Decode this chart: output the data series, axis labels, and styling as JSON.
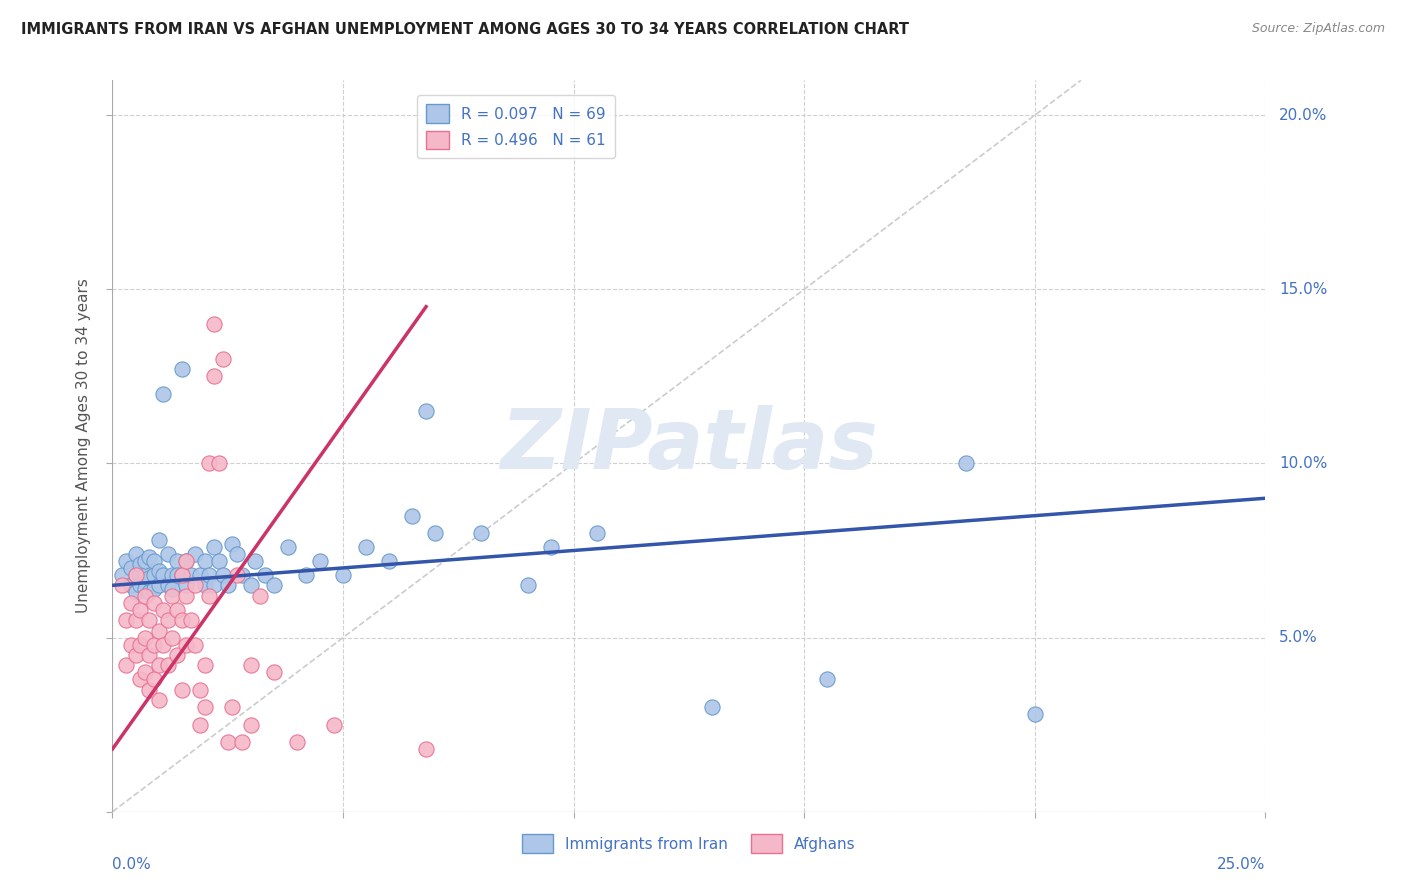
{
  "title": "IMMIGRANTS FROM IRAN VS AFGHAN UNEMPLOYMENT AMONG AGES 30 TO 34 YEARS CORRELATION CHART",
  "source": "Source: ZipAtlas.com",
  "ylabel": "Unemployment Among Ages 30 to 34 years",
  "legend_iran": {
    "R": "0.097",
    "N": "69",
    "label": "Immigrants from Iran"
  },
  "legend_afghan": {
    "R": "0.496",
    "N": "61",
    "label": "Afghans"
  },
  "iran_color": "#aec6e8",
  "afghan_color": "#f5b8c8",
  "iran_edge_color": "#6699cc",
  "afghan_edge_color": "#e87090",
  "iran_line_color": "#3355aa",
  "afghan_line_color": "#cc3366",
  "diagonal_color": "#cccccc",
  "right_tick_color": "#4472c4",
  "watermark_text": "ZIPatlas",
  "watermark_color": "#e0e8f4",
  "xlim": [
    0.0,
    0.25
  ],
  "ylim": [
    0.0,
    0.21
  ],
  "x_ticks": [
    0.0,
    0.05,
    0.1,
    0.15,
    0.2,
    0.25
  ],
  "y_ticks": [
    0.0,
    0.05,
    0.1,
    0.15,
    0.2
  ],
  "right_labels": [
    [
      "20.0%",
      0.2
    ],
    [
      "15.0%",
      0.15
    ],
    [
      "10.0%",
      0.1
    ],
    [
      "5.0%",
      0.05
    ]
  ],
  "bottom_labels": [
    [
      "0.0%",
      0.0
    ],
    [
      "25.0%",
      0.25
    ]
  ],
  "iran_trend": [
    0.0,
    0.065,
    0.25,
    0.09
  ],
  "afghan_trend": [
    0.0,
    0.018,
    0.068,
    0.145
  ],
  "diagonal": [
    0.0,
    0.0,
    0.21,
    0.21
  ],
  "iran_scatter": [
    [
      0.002,
      0.068
    ],
    [
      0.003,
      0.072
    ],
    [
      0.004,
      0.065
    ],
    [
      0.004,
      0.07
    ],
    [
      0.005,
      0.068
    ],
    [
      0.005,
      0.063
    ],
    [
      0.005,
      0.074
    ],
    [
      0.006,
      0.068
    ],
    [
      0.006,
      0.065
    ],
    [
      0.006,
      0.071
    ],
    [
      0.007,
      0.068
    ],
    [
      0.007,
      0.064
    ],
    [
      0.007,
      0.072
    ],
    [
      0.008,
      0.067
    ],
    [
      0.008,
      0.073
    ],
    [
      0.008,
      0.063
    ],
    [
      0.009,
      0.068
    ],
    [
      0.009,
      0.072
    ],
    [
      0.009,
      0.064
    ],
    [
      0.01,
      0.069
    ],
    [
      0.01,
      0.065
    ],
    [
      0.01,
      0.078
    ],
    [
      0.011,
      0.068
    ],
    [
      0.011,
      0.12
    ],
    [
      0.012,
      0.065
    ],
    [
      0.012,
      0.074
    ],
    [
      0.013,
      0.068
    ],
    [
      0.013,
      0.064
    ],
    [
      0.014,
      0.072
    ],
    [
      0.014,
      0.068
    ],
    [
      0.015,
      0.127
    ],
    [
      0.015,
      0.068
    ],
    [
      0.016,
      0.065
    ],
    [
      0.016,
      0.072
    ],
    [
      0.017,
      0.068
    ],
    [
      0.018,
      0.074
    ],
    [
      0.019,
      0.068
    ],
    [
      0.02,
      0.065
    ],
    [
      0.02,
      0.072
    ],
    [
      0.021,
      0.068
    ],
    [
      0.022,
      0.076
    ],
    [
      0.022,
      0.065
    ],
    [
      0.023,
      0.072
    ],
    [
      0.024,
      0.068
    ],
    [
      0.025,
      0.065
    ],
    [
      0.026,
      0.077
    ],
    [
      0.027,
      0.074
    ],
    [
      0.028,
      0.068
    ],
    [
      0.03,
      0.065
    ],
    [
      0.031,
      0.072
    ],
    [
      0.033,
      0.068
    ],
    [
      0.035,
      0.065
    ],
    [
      0.038,
      0.076
    ],
    [
      0.042,
      0.068
    ],
    [
      0.045,
      0.072
    ],
    [
      0.05,
      0.068
    ],
    [
      0.055,
      0.076
    ],
    [
      0.06,
      0.072
    ],
    [
      0.065,
      0.085
    ],
    [
      0.068,
      0.115
    ],
    [
      0.07,
      0.08
    ],
    [
      0.08,
      0.08
    ],
    [
      0.09,
      0.065
    ],
    [
      0.095,
      0.076
    ],
    [
      0.105,
      0.08
    ],
    [
      0.13,
      0.03
    ],
    [
      0.155,
      0.038
    ],
    [
      0.185,
      0.1
    ],
    [
      0.2,
      0.028
    ]
  ],
  "afghan_scatter": [
    [
      0.002,
      0.065
    ],
    [
      0.003,
      0.055
    ],
    [
      0.003,
      0.042
    ],
    [
      0.004,
      0.06
    ],
    [
      0.004,
      0.048
    ],
    [
      0.005,
      0.068
    ],
    [
      0.005,
      0.055
    ],
    [
      0.005,
      0.045
    ],
    [
      0.006,
      0.058
    ],
    [
      0.006,
      0.048
    ],
    [
      0.006,
      0.038
    ],
    [
      0.007,
      0.062
    ],
    [
      0.007,
      0.05
    ],
    [
      0.007,
      0.04
    ],
    [
      0.008,
      0.055
    ],
    [
      0.008,
      0.045
    ],
    [
      0.008,
      0.035
    ],
    [
      0.009,
      0.06
    ],
    [
      0.009,
      0.048
    ],
    [
      0.009,
      0.038
    ],
    [
      0.01,
      0.052
    ],
    [
      0.01,
      0.042
    ],
    [
      0.01,
      0.032
    ],
    [
      0.011,
      0.058
    ],
    [
      0.011,
      0.048
    ],
    [
      0.012,
      0.055
    ],
    [
      0.012,
      0.042
    ],
    [
      0.013,
      0.062
    ],
    [
      0.013,
      0.05
    ],
    [
      0.014,
      0.058
    ],
    [
      0.014,
      0.045
    ],
    [
      0.015,
      0.068
    ],
    [
      0.015,
      0.055
    ],
    [
      0.015,
      0.035
    ],
    [
      0.016,
      0.072
    ],
    [
      0.016,
      0.062
    ],
    [
      0.016,
      0.048
    ],
    [
      0.017,
      0.055
    ],
    [
      0.018,
      0.065
    ],
    [
      0.018,
      0.048
    ],
    [
      0.019,
      0.035
    ],
    [
      0.019,
      0.025
    ],
    [
      0.02,
      0.042
    ],
    [
      0.02,
      0.03
    ],
    [
      0.021,
      0.062
    ],
    [
      0.021,
      0.1
    ],
    [
      0.022,
      0.125
    ],
    [
      0.022,
      0.14
    ],
    [
      0.023,
      0.1
    ],
    [
      0.024,
      0.13
    ],
    [
      0.025,
      0.02
    ],
    [
      0.026,
      0.03
    ],
    [
      0.027,
      0.068
    ],
    [
      0.028,
      0.02
    ],
    [
      0.03,
      0.042
    ],
    [
      0.03,
      0.025
    ],
    [
      0.032,
      0.062
    ],
    [
      0.035,
      0.04
    ],
    [
      0.04,
      0.02
    ],
    [
      0.048,
      0.025
    ],
    [
      0.068,
      0.018
    ]
  ]
}
